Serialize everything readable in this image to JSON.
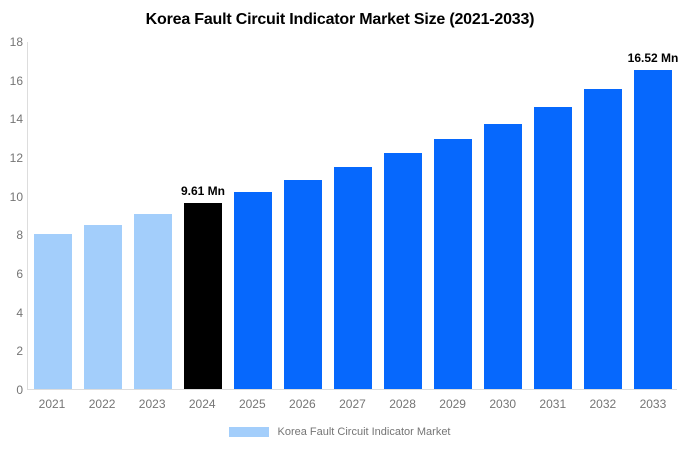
{
  "chart_data": {
    "type": "bar",
    "title": "Korea Fault Circuit Indicator Market Size (2021-2033)",
    "categories": [
      "2021",
      "2022",
      "2023",
      "2024",
      "2025",
      "2026",
      "2027",
      "2028",
      "2029",
      "2030",
      "2031",
      "2032",
      "2033"
    ],
    "values": [
      8.0,
      8.5,
      9.05,
      9.61,
      10.2,
      10.8,
      11.5,
      12.2,
      12.95,
      13.7,
      14.6,
      15.5,
      16.52
    ],
    "bar_colors": [
      "#A3CEFB",
      "#A3CEFB",
      "#A3CEFB",
      "#000000",
      "#0668FD",
      "#0668FD",
      "#0668FD",
      "#0668FD",
      "#0668FD",
      "#0668FD",
      "#0668FD",
      "#0668FD",
      "#0668FD"
    ],
    "data_labels": [
      {
        "index": 3,
        "text": "9.61 Mn"
      },
      {
        "index": 12,
        "text": "16.52 Mn"
      }
    ],
    "xlabel": "",
    "ylabel": "",
    "ylim": [
      0,
      18
    ],
    "y_ticks": [
      0,
      2,
      4,
      6,
      8,
      10,
      12,
      14,
      16,
      18
    ],
    "grid": false,
    "legend": {
      "position": "bottom",
      "entries": [
        {
          "label": "Korea Fault Circuit Indicator Market",
          "swatch_color": "#A3CEFB"
        }
      ]
    }
  },
  "colors": {
    "background": "#FFFFFF",
    "axis_line": "#DDDDDD",
    "tick_text": "#757575",
    "value_label_text": "#000000"
  }
}
